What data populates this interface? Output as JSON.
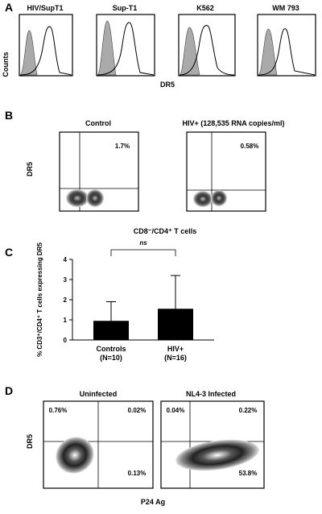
{
  "panelA": {
    "letter": "A",
    "ylabel": "Counts",
    "xlabel": "DR5",
    "plots": [
      {
        "title": "HIV/SupT1"
      },
      {
        "title": "Sup-T1"
      },
      {
        "title": "K562"
      },
      {
        "title": "WM 793"
      }
    ]
  },
  "panelB": {
    "letter": "B",
    "ylabel": "DR5",
    "xlabel": "CD8⁻/CD4⁺ T cells",
    "plots": [
      {
        "title": "Control",
        "quadrant_value": "1.7%"
      },
      {
        "title": "HIV+ (128,535 RNA copies/ml)",
        "quadrant_value": "0.58%"
      }
    ]
  },
  "panelC": {
    "letter": "C",
    "ylabel": "% CD3⁺/CD4⁺ T cells expressing DR5",
    "significance": "ns",
    "chart_data": {
      "type": "bar",
      "categories": [
        "Controls\n(N=10)",
        "HIV+\n(N=16)"
      ],
      "category_lines": [
        [
          "Controls",
          "(N=10)"
        ],
        [
          "HIV+",
          "(N=16)"
        ]
      ],
      "values": [
        0.95,
        1.55
      ],
      "errors": [
        0.95,
        1.65
      ],
      "ylim": [
        0,
        4
      ],
      "yticks": [
        0,
        1,
        2,
        3,
        4
      ]
    }
  },
  "panelD": {
    "letter": "D",
    "ylabel": "DR5",
    "xlabel": "P24 Ag",
    "plots": [
      {
        "title": "Uninfected",
        "ul": "0.76%",
        "ur": "0.02%",
        "lr": "0.13%"
      },
      {
        "title": "NL4-3 Infected",
        "ul": "0.04%",
        "ur": "0.22%",
        "lr": "53.8%"
      }
    ]
  }
}
